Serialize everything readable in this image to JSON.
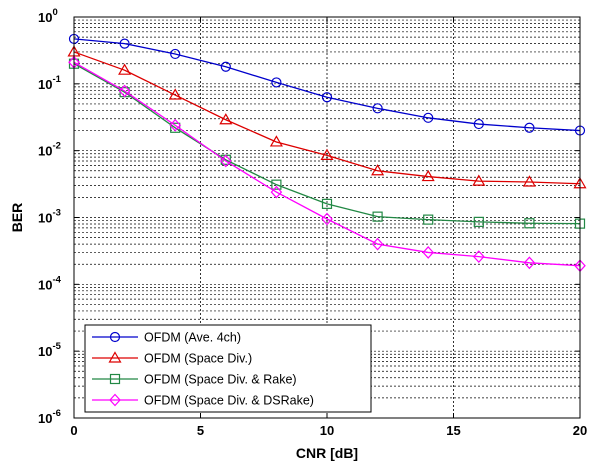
{
  "chart_data": {
    "type": "line",
    "xlabel": "CNR [dB]",
    "ylabel": "BER",
    "xlim": [
      0,
      20
    ],
    "ylim": [
      1e-06,
      1
    ],
    "yscale": "log",
    "grid": true,
    "legend_position": "bottom-left",
    "x_ticks": [
      {
        "value": 0,
        "label": "0"
      },
      {
        "value": 5,
        "label": "5"
      },
      {
        "value": 10,
        "label": "10"
      },
      {
        "value": 15,
        "label": "15"
      },
      {
        "value": 20,
        "label": "20"
      }
    ],
    "y_ticks": [
      {
        "value": 1,
        "base": "10",
        "exp": "0"
      },
      {
        "value": 0.1,
        "base": "10",
        "exp": "-1"
      },
      {
        "value": 0.01,
        "base": "10",
        "exp": "-2"
      },
      {
        "value": 0.001,
        "base": "10",
        "exp": "-3"
      },
      {
        "value": 0.0001,
        "base": "10",
        "exp": "-4"
      },
      {
        "value": 1e-05,
        "base": "10",
        "exp": "-5"
      },
      {
        "value": 1e-06,
        "base": "10",
        "exp": "-6"
      }
    ],
    "x": [
      0,
      2,
      4,
      6,
      8,
      10,
      12,
      14,
      16,
      18,
      20
    ],
    "series": [
      {
        "name": "OFDM (Ave. 4ch)",
        "color": "#0000cc",
        "marker": "circle",
        "values": [
          0.47,
          0.4,
          0.28,
          0.18,
          0.105,
          0.063,
          0.043,
          0.031,
          0.025,
          0.022,
          0.02
        ]
      },
      {
        "name": "OFDM (Space Div.)",
        "color": "#dd0000",
        "marker": "triangle",
        "values": [
          0.3,
          0.16,
          0.068,
          0.029,
          0.0135,
          0.0085,
          0.005,
          0.0041,
          0.0035,
          0.0034,
          0.0032
        ]
      },
      {
        "name": "OFDM (Space Div. & Rake)",
        "color": "#228844",
        "marker": "square",
        "values": [
          0.2,
          0.075,
          0.022,
          0.0073,
          0.0031,
          0.0016,
          0.00103,
          0.00093,
          0.00086,
          0.00082,
          0.00081
        ]
      },
      {
        "name": "OFDM (Space Div. & DSRake)",
        "color": "#ff00ff",
        "marker": "diamond",
        "values": [
          0.21,
          0.078,
          0.024,
          0.007,
          0.0024,
          0.00095,
          0.0004,
          0.0003,
          0.00026,
          0.00021,
          0.00019
        ]
      }
    ]
  }
}
